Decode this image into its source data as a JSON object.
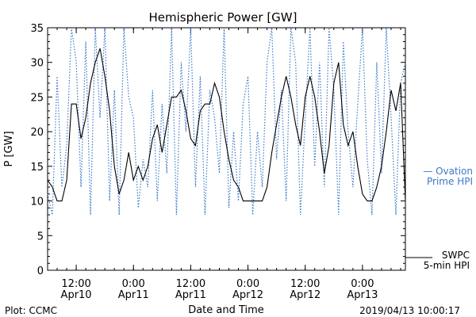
{
  "chart_data": {
    "type": "line",
    "title": "Hemispheric Power [GW]",
    "xlabel": "Date and Time",
    "ylabel": "P [GW]",
    "ylim": [
      0,
      35
    ],
    "xlim": [
      "2019-04-10 06:00",
      "2019-04-13 09:00"
    ],
    "yticks": [
      0,
      5,
      10,
      15,
      20,
      25,
      30,
      35
    ],
    "xticks": [
      {
        "t": "2019-04-10 12:00",
        "line1": "12:00",
        "line2": "Apr10"
      },
      {
        "t": "2019-04-11 00:00",
        "line1": "0:00",
        "line2": "Apr11"
      },
      {
        "t": "2019-04-11 12:00",
        "line1": "12:00",
        "line2": "Apr11"
      },
      {
        "t": "2019-04-12 00:00",
        "line1": "0:00",
        "line2": "Apr12"
      },
      {
        "t": "2019-04-12 12:00",
        "line1": "12:00",
        "line2": "Apr12"
      },
      {
        "t": "2019-04-13 00:00",
        "line1": "0:00",
        "line2": "Apr13"
      }
    ],
    "grid": false,
    "legend_position": "right",
    "series": [
      {
        "name": "SWPC 5-min HPI",
        "color": "#000000",
        "style": "solid",
        "x": [
          "2019-04-10 06:00",
          "2019-04-10 07:00",
          "2019-04-10 08:00",
          "2019-04-10 09:00",
          "2019-04-10 10:00",
          "2019-04-10 11:00",
          "2019-04-10 12:00",
          "2019-04-10 13:00",
          "2019-04-10 14:00",
          "2019-04-10 15:00",
          "2019-04-10 16:00",
          "2019-04-10 17:00",
          "2019-04-10 18:00",
          "2019-04-10 19:00",
          "2019-04-10 20:00",
          "2019-04-10 21:00",
          "2019-04-10 22:00",
          "2019-04-10 23:00",
          "2019-04-11 00:00",
          "2019-04-11 01:00",
          "2019-04-11 02:00",
          "2019-04-11 03:00",
          "2019-04-11 04:00",
          "2019-04-11 05:00",
          "2019-04-11 06:00",
          "2019-04-11 07:00",
          "2019-04-11 08:00",
          "2019-04-11 09:00",
          "2019-04-11 10:00",
          "2019-04-11 11:00",
          "2019-04-11 12:00",
          "2019-04-11 13:00",
          "2019-04-11 14:00",
          "2019-04-11 15:00",
          "2019-04-11 16:00",
          "2019-04-11 17:00",
          "2019-04-11 18:00",
          "2019-04-11 19:00",
          "2019-04-11 20:00",
          "2019-04-11 21:00",
          "2019-04-11 22:00",
          "2019-04-11 23:00",
          "2019-04-12 00:00",
          "2019-04-12 01:00",
          "2019-04-12 02:00",
          "2019-04-12 03:00",
          "2019-04-12 04:00",
          "2019-04-12 05:00",
          "2019-04-12 06:00",
          "2019-04-12 07:00",
          "2019-04-12 08:00",
          "2019-04-12 09:00",
          "2019-04-12 10:00",
          "2019-04-12 11:00",
          "2019-04-12 12:00",
          "2019-04-12 13:00",
          "2019-04-12 14:00",
          "2019-04-12 15:00",
          "2019-04-12 16:00",
          "2019-04-12 17:00",
          "2019-04-12 18:00",
          "2019-04-12 19:00",
          "2019-04-12 20:00",
          "2019-04-12 21:00",
          "2019-04-12 22:00",
          "2019-04-12 23:00",
          "2019-04-13 00:00",
          "2019-04-13 01:00",
          "2019-04-13 02:00",
          "2019-04-13 03:00",
          "2019-04-13 04:00",
          "2019-04-13 05:00",
          "2019-04-13 06:00",
          "2019-04-13 07:00",
          "2019-04-13 08:00",
          "2019-04-13 09:00"
        ],
        "y": [
          13,
          12,
          10,
          10,
          13,
          24,
          24,
          19,
          22,
          27,
          30,
          32,
          28,
          23,
          15,
          11,
          13,
          17,
          13,
          15,
          13,
          15,
          19,
          21,
          17,
          21,
          25,
          25,
          26,
          23,
          19,
          18,
          23,
          24,
          24,
          27,
          25,
          20,
          16,
          13,
          12,
          10,
          10,
          10,
          10,
          10,
          12,
          17,
          21,
          25,
          28,
          25,
          21,
          18,
          25,
          28,
          25,
          20,
          14,
          18,
          27,
          30,
          21,
          18,
          20,
          15,
          11,
          10,
          10,
          12,
          15,
          20,
          26,
          23,
          27,
          10
        ]
      },
      {
        "name": "Ovation Prime HPI",
        "color": "#3a78c8",
        "style": "dotted",
        "x": [
          "2019-04-10 06:00",
          "2019-04-10 07:00",
          "2019-04-10 08:00",
          "2019-04-10 09:00",
          "2019-04-10 10:00",
          "2019-04-10 11:00",
          "2019-04-10 12:00",
          "2019-04-10 13:00",
          "2019-04-10 14:00",
          "2019-04-10 15:00",
          "2019-04-10 16:00",
          "2019-04-10 17:00",
          "2019-04-10 18:00",
          "2019-04-10 19:00",
          "2019-04-10 20:00",
          "2019-04-10 21:00",
          "2019-04-10 22:00",
          "2019-04-10 23:00",
          "2019-04-11 00:00",
          "2019-04-11 01:00",
          "2019-04-11 02:00",
          "2019-04-11 03:00",
          "2019-04-11 04:00",
          "2019-04-11 05:00",
          "2019-04-11 06:00",
          "2019-04-11 07:00",
          "2019-04-11 08:00",
          "2019-04-11 09:00",
          "2019-04-11 10:00",
          "2019-04-11 11:00",
          "2019-04-11 12:00",
          "2019-04-11 13:00",
          "2019-04-11 14:00",
          "2019-04-11 15:00",
          "2019-04-11 16:00",
          "2019-04-11 17:00",
          "2019-04-11 18:00",
          "2019-04-11 19:00",
          "2019-04-11 20:00",
          "2019-04-11 21:00",
          "2019-04-11 22:00",
          "2019-04-11 23:00",
          "2019-04-12 00:00",
          "2019-04-12 01:00",
          "2019-04-12 02:00",
          "2019-04-12 03:00",
          "2019-04-12 04:00",
          "2019-04-12 05:00",
          "2019-04-12 06:00",
          "2019-04-12 07:00",
          "2019-04-12 08:00",
          "2019-04-12 09:00",
          "2019-04-12 10:00",
          "2019-04-12 11:00",
          "2019-04-12 12:00",
          "2019-04-12 13:00",
          "2019-04-12 14:00",
          "2019-04-12 15:00",
          "2019-04-12 16:00",
          "2019-04-12 17:00",
          "2019-04-12 18:00",
          "2019-04-12 19:00",
          "2019-04-12 20:00",
          "2019-04-12 21:00",
          "2019-04-12 22:00",
          "2019-04-12 23:00",
          "2019-04-13 00:00",
          "2019-04-13 01:00",
          "2019-04-13 02:00",
          "2019-04-13 03:00",
          "2019-04-13 04:00",
          "2019-04-13 05:00",
          "2019-04-13 06:00",
          "2019-04-13 07:00",
          "2019-04-13 08:00",
          "2019-04-13 09:00"
        ],
        "y": [
          11,
          8,
          28,
          12,
          18,
          35,
          30,
          12,
          33,
          8,
          35,
          22,
          35,
          10,
          26,
          8,
          35,
          25,
          22,
          9,
          16,
          12,
          26,
          10,
          24,
          14,
          35,
          8,
          30,
          20,
          35,
          12,
          28,
          8,
          26,
          22,
          14,
          35,
          9,
          20,
          10,
          24,
          28,
          8,
          20,
          12,
          30,
          35,
          16,
          26,
          10,
          35,
          30,
          8,
          22,
          35,
          15,
          30,
          12,
          35,
          26,
          8,
          33,
          20,
          12,
          24,
          35,
          16,
          8,
          30,
          14,
          35,
          22,
          8,
          27,
          30
        ]
      }
    ]
  },
  "title": "Hemispheric Power [GW]",
  "xlabel": "Date and Time",
  "ylabel": "P [GW]",
  "legend": {
    "ovation_line1": "— Ovation",
    "ovation_line2": "Prime HPI",
    "swpc_line1": "SWPC",
    "swpc_line2": "5-min HPI"
  },
  "footer": {
    "left": "Plot: CCMC",
    "right": "2019/04/13 10:00:17"
  }
}
